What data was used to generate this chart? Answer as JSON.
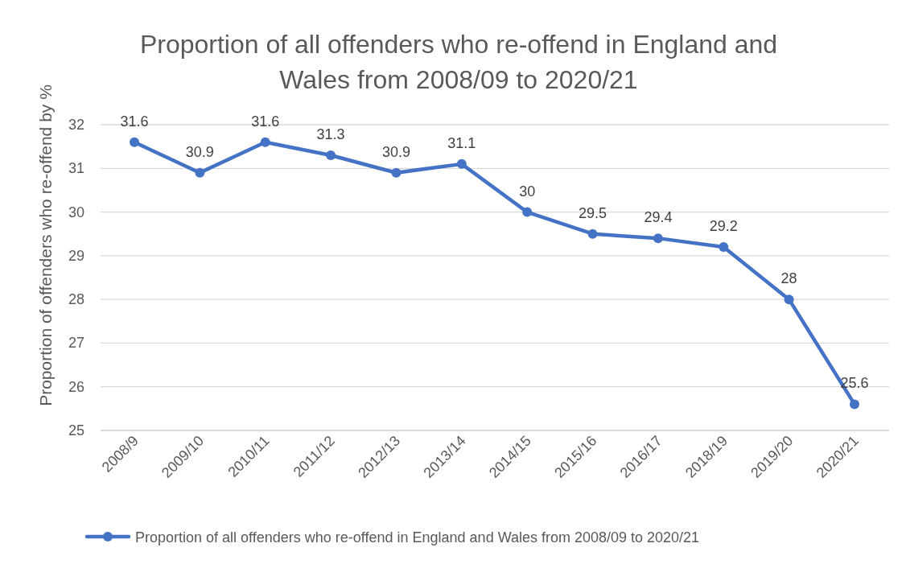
{
  "chart_data": {
    "type": "line",
    "title": "Proportion of all offenders who re-offend in England and Wales from 2008/09 to 2020/21",
    "ylabel": "Proportion of offenders who re-offend by %",
    "categories": [
      "2008/9",
      "2009/10",
      "2010/11",
      "2011/12",
      "2012/13",
      "2013/14",
      "2014/15",
      "2015/16",
      "2016/17",
      "2018/19",
      "2019/20",
      "2020/21"
    ],
    "series": [
      {
        "name": "Proportion of all offenders who re-offend in England and Wales from 2008/09 to 2020/21",
        "color": "#4472c4",
        "values": [
          31.6,
          30.9,
          31.6,
          31.3,
          30.9,
          31.1,
          30,
          29.5,
          29.4,
          29.2,
          28,
          25.6
        ]
      }
    ],
    "ylim": [
      25,
      32
    ],
    "yticks": [
      25,
      26,
      27,
      28,
      29,
      30,
      31,
      32
    ],
    "grid": "y",
    "legend": "bottom",
    "marker": "circle",
    "data_labels": true
  }
}
